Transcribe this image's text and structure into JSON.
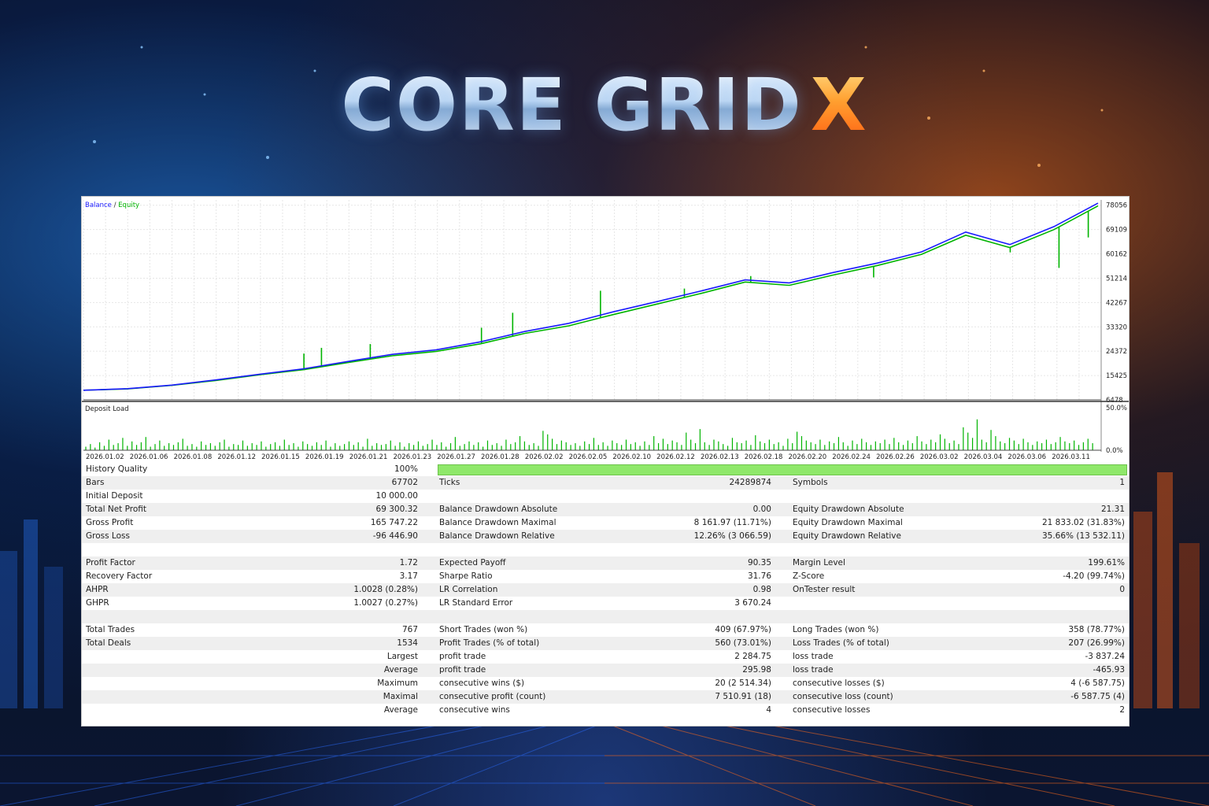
{
  "header": {
    "logo_main": "CORE GRID",
    "logo_accent": "X"
  },
  "colors": {
    "balance": "#1a1aff",
    "equity": "#00b400",
    "deposit_load": "#00b400",
    "accent_orange": "#ff7a1a",
    "accent_blue": "#2a8cff"
  },
  "chart_data": [
    {
      "type": "line",
      "legend": [
        "Balance",
        "Equity"
      ],
      "legend_placement": "top-left",
      "grid": true,
      "y_ticks": [
        6478,
        15425,
        24372,
        33320,
        42267,
        51214,
        60162,
        69109,
        78056
      ],
      "ylim": [
        6478,
        80000
      ],
      "x_ticks": [
        "2026.01.02",
        "2026.01.06",
        "2026.01.08",
        "2026.01.12",
        "2026.01.15",
        "2026.01.19",
        "2026.01.21",
        "2026.01.23",
        "2026.01.27",
        "2026.01.28",
        "2026.02.02",
        "2026.02.05",
        "2026.02.10",
        "2026.02.12",
        "2026.02.13",
        "2026.02.18",
        "2026.02.20",
        "2026.02.24",
        "2026.02.26",
        "2026.03.02",
        "2026.03.04",
        "2026.03.06",
        "2026.03.11"
      ],
      "series": [
        {
          "name": "Balance",
          "x": [
            0,
            1,
            2,
            3,
            4,
            5,
            6,
            7,
            8,
            9,
            10,
            11,
            12,
            13,
            14,
            15,
            16,
            17,
            18,
            19,
            20,
            21,
            22,
            23
          ],
          "values": [
            10000,
            10600,
            11900,
            13800,
            15900,
            17900,
            20600,
            23200,
            24900,
            27800,
            31600,
            34600,
            38800,
            42600,
            46500,
            50600,
            49500,
            53300,
            56800,
            60900,
            68200,
            63600,
            70200,
            78800
          ]
        },
        {
          "name": "Equity",
          "x": [
            0,
            1,
            2,
            3,
            4,
            5,
            6,
            7,
            8,
            9,
            10,
            11,
            12,
            13,
            14,
            15,
            16,
            17,
            18,
            19,
            20,
            21,
            22,
            23
          ],
          "values": [
            10000,
            10500,
            11800,
            13600,
            15700,
            17600,
            20200,
            22700,
            24300,
            27100,
            30900,
            33700,
            37800,
            41700,
            45600,
            49800,
            48600,
            52400,
            55900,
            60000,
            67000,
            62500,
            69100,
            77800
          ],
          "drops": [
            {
              "x": 11.3,
              "value": 23500
            },
            {
              "x": 12.2,
              "value": 25600
            },
            {
              "x": 14.7,
              "value": 27000
            },
            {
              "x": 20.4,
              "value": 33000
            },
            {
              "x": 22.0,
              "value": 38500
            },
            {
              "x": 26.5,
              "value": 46600
            },
            {
              "x": 30.8,
              "value": 47400
            },
            {
              "x": 34.2,
              "value": 52000
            },
            {
              "x": 40.5,
              "value": 51500
            },
            {
              "x": 47.5,
              "value": 60700
            },
            {
              "x": 50.0,
              "value": 55000
            },
            {
              "x": 51.5,
              "value": 66200
            }
          ]
        }
      ]
    },
    {
      "type": "bar",
      "title": "Deposit Load",
      "y_ticks": [
        "50.0%",
        "0.0%"
      ],
      "ylim": [
        0,
        50
      ],
      "values": [
        4,
        7,
        3,
        9,
        5,
        12,
        6,
        8,
        14,
        5,
        10,
        6,
        9,
        15,
        4,
        7,
        11,
        5,
        8,
        6,
        9,
        13,
        5,
        7,
        4,
        10,
        6,
        8,
        5,
        9,
        12,
        4,
        7,
        6,
        11,
        5,
        8,
        6,
        10,
        4,
        7,
        9,
        5,
        12,
        6,
        8,
        4,
        10,
        7,
        5,
        9,
        6,
        11,
        4,
        8,
        5,
        7,
        10,
        6,
        9,
        4,
        13,
        5,
        8,
        6,
        7,
        11,
        5,
        9,
        4,
        8,
        6,
        10,
        5,
        7,
        12,
        6,
        9,
        4,
        8,
        15,
        5,
        7,
        10,
        6,
        9,
        4,
        11,
        6,
        8,
        5,
        12,
        7,
        9,
        16,
        10,
        6,
        8,
        5,
        22,
        18,
        13,
        7,
        11,
        9,
        6,
        8,
        5,
        10,
        7,
        14,
        6,
        9,
        5,
        11,
        8,
        6,
        12,
        7,
        9,
        5,
        10,
        6,
        16,
        8,
        13,
        7,
        11,
        9,
        6,
        20,
        12,
        8,
        24,
        9,
        6,
        12,
        10,
        7,
        5,
        14,
        9,
        8,
        11,
        6,
        17,
        10,
        8,
        12,
        7,
        9,
        5,
        13,
        8,
        21,
        16,
        11,
        9,
        7,
        12,
        6,
        10,
        8,
        15,
        9,
        5,
        11,
        7,
        13,
        9,
        6,
        10,
        8,
        12,
        7,
        14,
        9,
        6,
        11,
        8,
        16,
        10,
        7,
        12,
        9,
        18,
        13,
        8,
        11,
        7,
        26,
        20,
        14,
        35,
        12,
        9,
        23,
        16,
        10,
        8,
        14,
        11,
        7,
        13,
        9,
        6,
        10,
        8,
        12,
        7,
        9,
        15,
        10,
        8,
        11,
        6,
        9,
        13,
        8
      ]
    }
  ],
  "stats": {
    "rows": [
      {
        "l1": "History Quality",
        "v1": "100%",
        "quality_bar": 1.0
      },
      {
        "l1": "Bars",
        "v1": "67702",
        "l2": "Ticks",
        "v2": "24289874",
        "l3": "Symbols",
        "v3": "1"
      },
      {
        "l1": "Initial Deposit",
        "v1": "10 000.00"
      },
      {
        "l1": "Total Net Profit",
        "v1": "69 300.32",
        "l2": "Balance Drawdown Absolute",
        "v2": "0.00",
        "l3": "Equity Drawdown Absolute",
        "v3": "21.31"
      },
      {
        "l1": "Gross Profit",
        "v1": "165 747.22",
        "l2": "Balance Drawdown Maximal",
        "v2": "8 161.97 (11.71%)",
        "l3": "Equity Drawdown Maximal",
        "v3": "21 833.02 (31.83%)"
      },
      {
        "l1": "Gross Loss",
        "v1": "-96 446.90",
        "l2": "Balance Drawdown Relative",
        "v2": "12.26% (3 066.59)",
        "l3": "Equity Drawdown Relative",
        "v3": "35.66% (13 532.11)"
      },
      {},
      {
        "l1": "Profit Factor",
        "v1": "1.72",
        "l2": "Expected Payoff",
        "v2": "90.35",
        "l3": "Margin Level",
        "v3": "199.61%"
      },
      {
        "l1": "Recovery Factor",
        "v1": "3.17",
        "l2": "Sharpe Ratio",
        "v2": "31.76",
        "l3": "Z-Score",
        "v3": "-4.20 (99.74%)"
      },
      {
        "l1": "AHPR",
        "v1": "1.0028 (0.28%)",
        "l2": "LR Correlation",
        "v2": "0.98",
        "l3": "OnTester result",
        "v3": "0"
      },
      {
        "l1": "GHPR",
        "v1": "1.0027 (0.27%)",
        "l2": "LR Standard Error",
        "v2": "3 670.24"
      },
      {},
      {
        "l1": "Total Trades",
        "v1": "767",
        "l2": "Short Trades (won %)",
        "v2": "409 (67.97%)",
        "l3": "Long Trades (won %)",
        "v3": "358 (78.77%)"
      },
      {
        "l1": "Total Deals",
        "v1": "1534",
        "l2": "Profit Trades (% of total)",
        "v2": "560 (73.01%)",
        "l3": "Loss Trades (% of total)",
        "v3": "207 (26.99%)"
      },
      {
        "v1": "Largest",
        "l2": "profit trade",
        "v2": "2 284.75",
        "l3": "loss trade",
        "v3": "-3 837.24"
      },
      {
        "v1": "Average",
        "l2": "profit trade",
        "v2": "295.98",
        "l3": "loss trade",
        "v3": "-465.93"
      },
      {
        "v1": "Maximum",
        "l2": "consecutive wins ($)",
        "v2": "20 (2 514.34)",
        "l3": "consecutive losses ($)",
        "v3": "4 (-6 587.75)"
      },
      {
        "v1": "Maximal",
        "l2": "consecutive profit (count)",
        "v2": "7 510.91 (18)",
        "l3": "consecutive loss (count)",
        "v3": "-6 587.75 (4)"
      },
      {
        "v1": "Average",
        "l2": "consecutive wins",
        "v2": "4",
        "l3": "consecutive losses",
        "v3": "2"
      }
    ]
  }
}
